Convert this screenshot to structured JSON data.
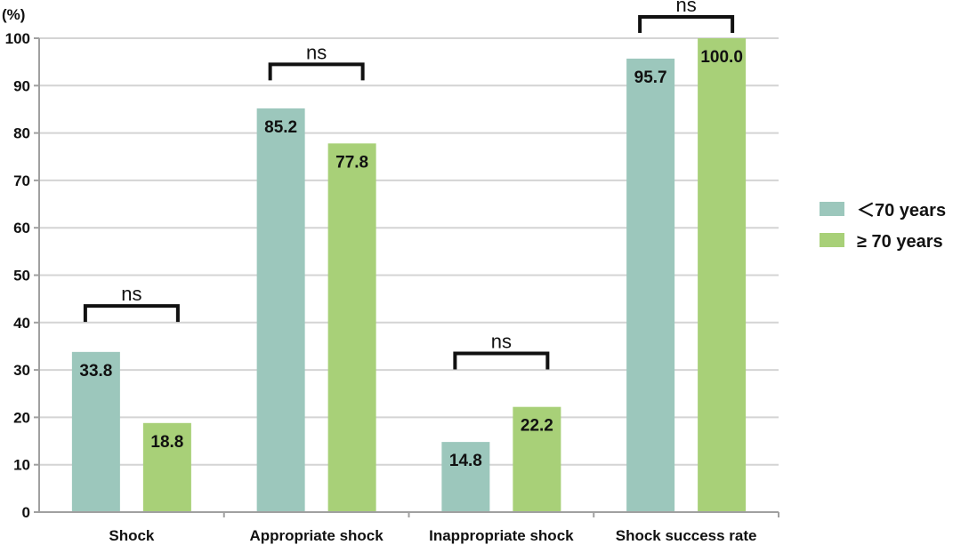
{
  "chart_data": {
    "type": "bar",
    "title": "",
    "xlabel": "",
    "ylabel": "(%)",
    "ylim": [
      0,
      100
    ],
    "yticks": [
      0,
      10,
      20,
      30,
      40,
      50,
      60,
      70,
      80,
      90,
      100
    ],
    "grid": true,
    "categories": [
      "Shock",
      "Appropriate shock",
      "Inappropriate shock",
      "Shock success rate"
    ],
    "series": [
      {
        "name": "＜70 years",
        "color": "#9cc7bc",
        "values": [
          33.8,
          85.2,
          14.8,
          95.7
        ],
        "labels": [
          "33.8",
          "85.2",
          "14.8",
          "95.7"
        ]
      },
      {
        "name": "≥ 70 years",
        "color": "#a8d078",
        "values": [
          18.8,
          77.8,
          22.2,
          100.0
        ],
        "labels": [
          "18.8",
          "77.8",
          "22.2",
          "100.0"
        ]
      }
    ],
    "annotations": [
      {
        "category": "Shock",
        "text": "ns",
        "level": 43.5
      },
      {
        "category": "Appropriate shock",
        "text": "ns",
        "level": 94.5
      },
      {
        "category": "Inappropriate shock",
        "text": "ns",
        "level": 33.5
      },
      {
        "category": "Shock success rate",
        "text": "ns",
        "level": 104.5
      }
    ],
    "legend_position": "right"
  }
}
